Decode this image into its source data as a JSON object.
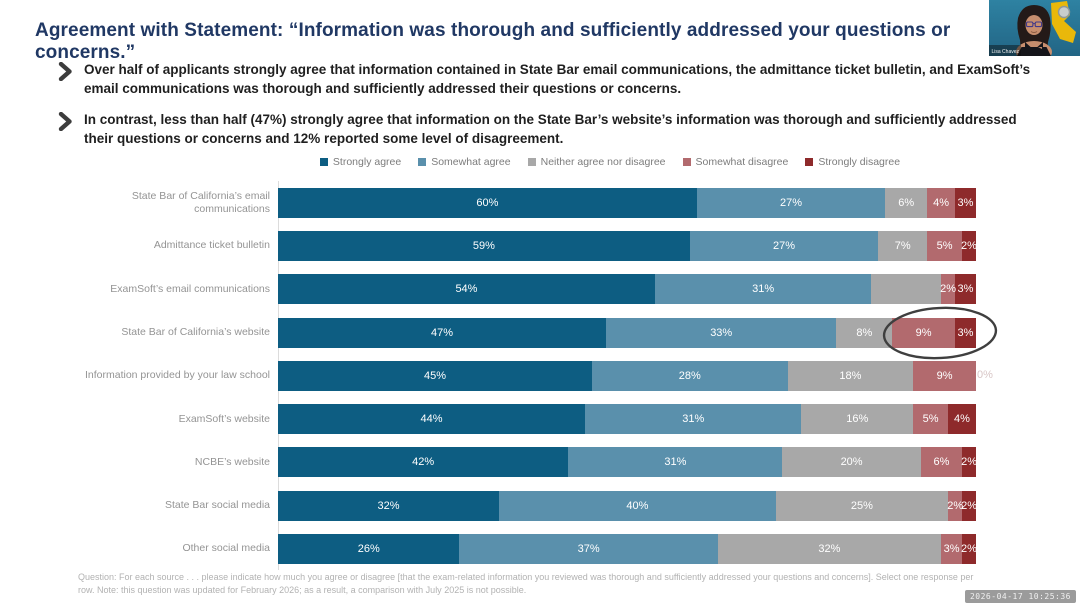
{
  "slide": {
    "title": "Agreement with Statement:  “Information was thorough and sufficiently addressed your questions or concerns.”",
    "bullets": [
      "Over half of applicants strongly agree that information contained in State Bar email communications, the admittance ticket bulletin, and ExamSoft’s email communications was thorough and sufficiently addressed their questions or concerns.",
      "In contrast, less than half (47%) strongly agree that information on the State Bar’s website’s information was thorough and sufficiently addressed their questions or concerns and 12% reported some level of disagreement."
    ],
    "footnote": "Question:  For each source . . . please indicate how much you agree or disagree [that the exam-related information you reviewed was thorough and sufficiently addressed your questions and concerns]. Select one response per row.  Note: this question was updated for February 2026; as a result, a comparison with July 2025 is not possible."
  },
  "chart_data": {
    "type": "bar",
    "stacked": true,
    "orientation": "horizontal",
    "value_format": "percent",
    "xlim": [
      0,
      100
    ],
    "grid": false,
    "legend_position": "top-center",
    "categories": [
      "State Bar of California’s email communications",
      "Admittance ticket bulletin",
      "ExamSoft’s email communications",
      "State Bar of California’s website",
      "Information provided by your law school",
      "ExamSoft’s website",
      "NCBE’s website",
      "State Bar social media",
      "Other social media"
    ],
    "series": [
      {
        "name": "Strongly agree",
        "color": "#0d5d82",
        "values": [
          60,
          59,
          54,
          47,
          45,
          44,
          42,
          32,
          26
        ],
        "display_labels": [
          "60%",
          "59%",
          "54%",
          "47%",
          "45%",
          "44%",
          "42%",
          "32%",
          "26%"
        ]
      },
      {
        "name": "Somewhat agree",
        "color": "#5a90ac",
        "values": [
          27,
          27,
          31,
          33,
          28,
          31,
          31,
          40,
          37
        ],
        "display_labels": [
          "27%",
          "27%",
          "31%",
          "33%",
          "28%",
          "31%",
          "31%",
          "40%",
          "37%"
        ]
      },
      {
        "name": "Neither agree nor disagree",
        "color": "#a8a8a8",
        "values": [
          6,
          7,
          10,
          8,
          18,
          16,
          20,
          25,
          32
        ],
        "display_labels": [
          "6%",
          "7%",
          "",
          "8%",
          "18%",
          "16%",
          "20%",
          "25%",
          "32%"
        ]
      },
      {
        "name": "Somewhat disagree",
        "color": "#b26a6e",
        "values": [
          4,
          5,
          2,
          9,
          9,
          5,
          6,
          2,
          3
        ],
        "display_labels": [
          "4%",
          "5%",
          "2%",
          "9%",
          "9%",
          "5%",
          "6%",
          "2%",
          "3%"
        ]
      },
      {
        "name": "Strongly disagree",
        "color": "#8e2a2b",
        "values": [
          3,
          2,
          3,
          3,
          0,
          4,
          2,
          2,
          2
        ],
        "display_labels": [
          "3%",
          "2%",
          "3%",
          "3%",
          "0%",
          "4%",
          "2%",
          "2%",
          "2%"
        ]
      }
    ],
    "annotation": {
      "type": "ellipse",
      "target": "State Bar of California’s website — Somewhat disagree 9% and Strongly disagree 3%",
      "stroke_color": "#3f3f3f"
    }
  },
  "webcam": {
    "name": "Lisa Chavez"
  },
  "recording": {
    "timestamp": "2026-04-17 10:25:36"
  }
}
